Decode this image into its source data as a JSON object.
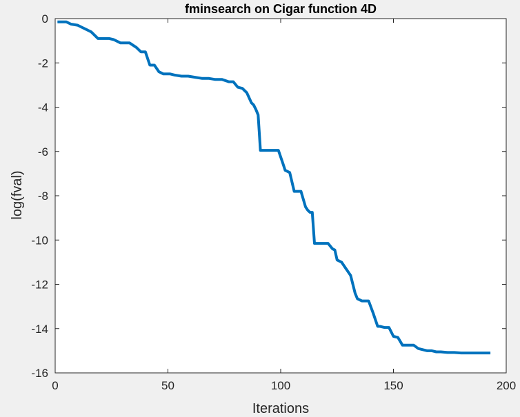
{
  "colors": {
    "figure_background": "#f0f0f0",
    "axes_background": "#ffffff",
    "axes_color": "#262626",
    "line_color": "#0072bd"
  },
  "chart_data": {
    "type": "line",
    "title": "fminsearch on Cigar function 4D",
    "xlabel": "Iterations",
    "ylabel": "log(fval)",
    "xlim": [
      0,
      200
    ],
    "ylim": [
      -16,
      0
    ],
    "xticks": [
      0,
      50,
      100,
      150,
      200
    ],
    "yticks": [
      0,
      -2,
      -4,
      -6,
      -8,
      -10,
      -12,
      -14,
      -16
    ],
    "grid": false,
    "series": [
      {
        "color": "#0072bd",
        "x": [
          1,
          5,
          7,
          10,
          12,
          14,
          16,
          19,
          22,
          24,
          26,
          29,
          31,
          33,
          36,
          38,
          40,
          42,
          44,
          46,
          48,
          51,
          53,
          56,
          59,
          62,
          65,
          68,
          71,
          74,
          77,
          79,
          81,
          83,
          85,
          87,
          88,
          89,
          90,
          91,
          93,
          96,
          99,
          101,
          102,
          104,
          106,
          108,
          109,
          111,
          112,
          113,
          114,
          115,
          117,
          119,
          121,
          123,
          124,
          125,
          127,
          129,
          131,
          133,
          134,
          136,
          137,
          139,
          141,
          143,
          144,
          146,
          148,
          150,
          152,
          154,
          155,
          157,
          159,
          161,
          163,
          165,
          167,
          169,
          171,
          174,
          177,
          180,
          184,
          188,
          193
        ],
        "y": [
          -0.15,
          -0.15,
          -0.25,
          -0.3,
          -0.4,
          -0.5,
          -0.6,
          -0.9,
          -0.9,
          -0.9,
          -0.95,
          -1.1,
          -1.1,
          -1.1,
          -1.3,
          -1.5,
          -1.5,
          -2.1,
          -2.1,
          -2.4,
          -2.5,
          -2.5,
          -2.55,
          -2.6,
          -2.6,
          -2.65,
          -2.7,
          -2.7,
          -2.75,
          -2.75,
          -2.85,
          -2.85,
          -3.1,
          -3.15,
          -3.35,
          -3.8,
          -3.9,
          -4.1,
          -4.35,
          -5.95,
          -5.95,
          -5.95,
          -5.95,
          -6.55,
          -6.85,
          -6.95,
          -7.8,
          -7.8,
          -7.8,
          -8.5,
          -8.65,
          -8.75,
          -8.75,
          -10.15,
          -10.15,
          -10.15,
          -10.15,
          -10.4,
          -10.45,
          -10.9,
          -11.0,
          -11.3,
          -11.6,
          -12.4,
          -12.65,
          -12.75,
          -12.75,
          -12.75,
          -13.3,
          -13.9,
          -13.9,
          -13.95,
          -13.95,
          -14.35,
          -14.4,
          -14.75,
          -14.75,
          -14.75,
          -14.75,
          -14.9,
          -14.95,
          -15.0,
          -15.0,
          -15.05,
          -15.05,
          -15.08,
          -15.08,
          -15.1,
          -15.1,
          -15.1,
          -15.1
        ]
      }
    ]
  }
}
